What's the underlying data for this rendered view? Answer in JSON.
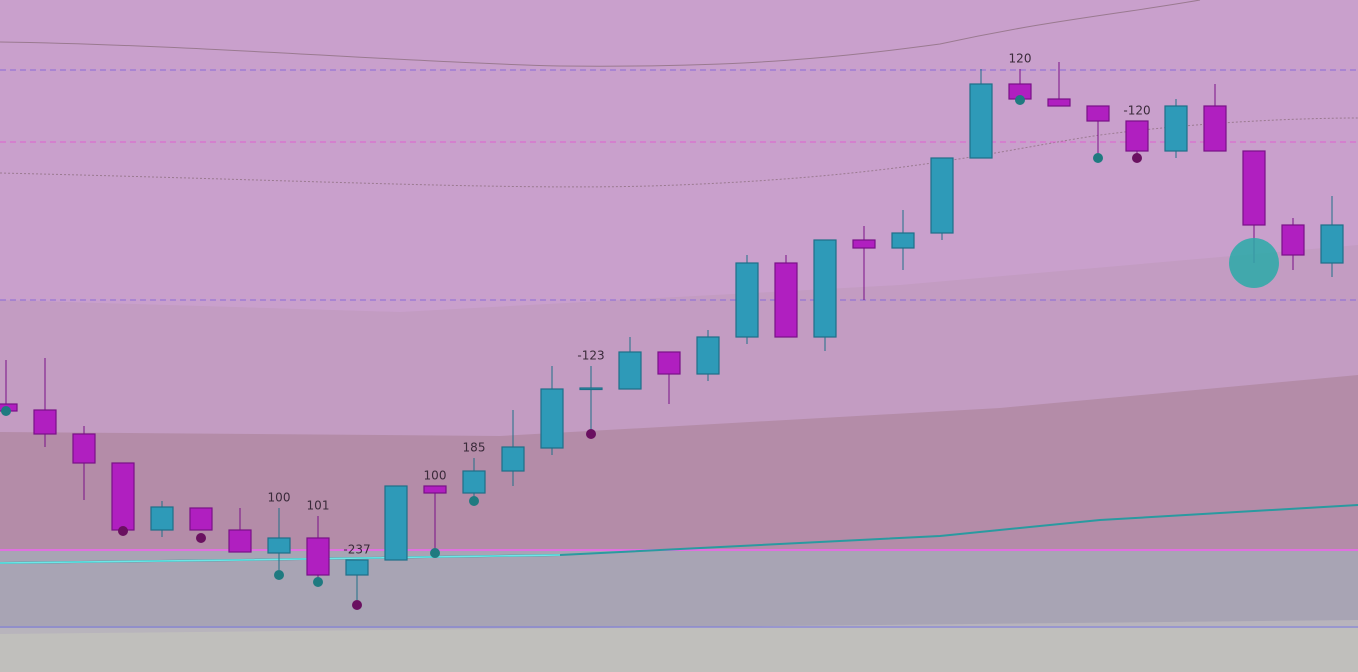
{
  "chart_data": {
    "type": "candlestick",
    "ylim": [
      0,
      672
    ],
    "up_color": "#2e9ab8",
    "down_color": "#b01fc0",
    "open": [
      268,
      262,
      238,
      209,
      142,
      164,
      142,
      119,
      134,
      97,
      112,
      186,
      179,
      201,
      224,
      283,
      283,
      320,
      298,
      335,
      409,
      335,
      432,
      424,
      439,
      514,
      588,
      573,
      566,
      551,
      521,
      566,
      521,
      447,
      409
    ],
    "high": [
      312,
      314,
      246,
      209,
      171,
      164,
      164,
      164,
      156,
      112,
      186,
      186,
      214,
      262,
      306,
      306,
      335,
      320,
      342,
      417,
      417,
      432,
      446,
      462,
      514,
      603,
      603,
      610,
      566,
      551,
      573,
      588,
      521,
      454,
      476
    ],
    "low": [
      258,
      225,
      172,
      137,
      135,
      142,
      120,
      102,
      90,
      72,
      112,
      120,
      172,
      186,
      217,
      239,
      283,
      268,
      291,
      328,
      335,
      321,
      372,
      402,
      432,
      514,
      572,
      566,
      514,
      514,
      514,
      521,
      409,
      402,
      395
    ],
    "close": [
      261,
      238,
      209,
      142,
      165,
      142,
      120,
      134,
      97,
      112,
      186,
      179,
      201,
      225,
      283,
      284,
      320,
      298,
      335,
      409,
      335,
      432,
      424,
      439,
      514,
      588,
      573,
      566,
      551,
      521,
      566,
      521,
      447,
      417,
      447
    ],
    "labels": [
      null,
      null,
      null,
      null,
      null,
      null,
      null,
      "100",
      "101",
      "-237",
      null,
      "100",
      "185",
      null,
      null,
      "-123",
      null,
      null,
      null,
      null,
      null,
      null,
      null,
      null,
      null,
      null,
      "120",
      null,
      null,
      "-120",
      null,
      null,
      null,
      null,
      null
    ],
    "signals": [
      261,
      null,
      null,
      141,
      null,
      134,
      null,
      97,
      90,
      67,
      null,
      119,
      171,
      null,
      null,
      238,
      null,
      null,
      null,
      null,
      null,
      null,
      null,
      null,
      null,
      null,
      572,
      null,
      514,
      514,
      null,
      null,
      409,
      null,
      null
    ],
    "signal_colors": [
      "#1f7a80",
      null,
      null,
      "#6a1060",
      null,
      "#6a1060",
      null,
      "#1f7a80",
      "#1f7a80",
      "#6a1060",
      null,
      "#1f7a80",
      "#1f7a80",
      null,
      null,
      "#6a1060",
      null,
      null,
      null,
      null,
      null,
      null,
      null,
      null,
      null,
      null,
      "#1f7a80",
      null,
      "#1f7a80",
      "#6a1060",
      null,
      null,
      "#2aaaa8",
      null,
      null
    ],
    "levels": [
      602,
      530,
      372
    ],
    "level_colors": [
      "#8a6ad8",
      "#e060d0",
      "#8a6ad8"
    ]
  }
}
